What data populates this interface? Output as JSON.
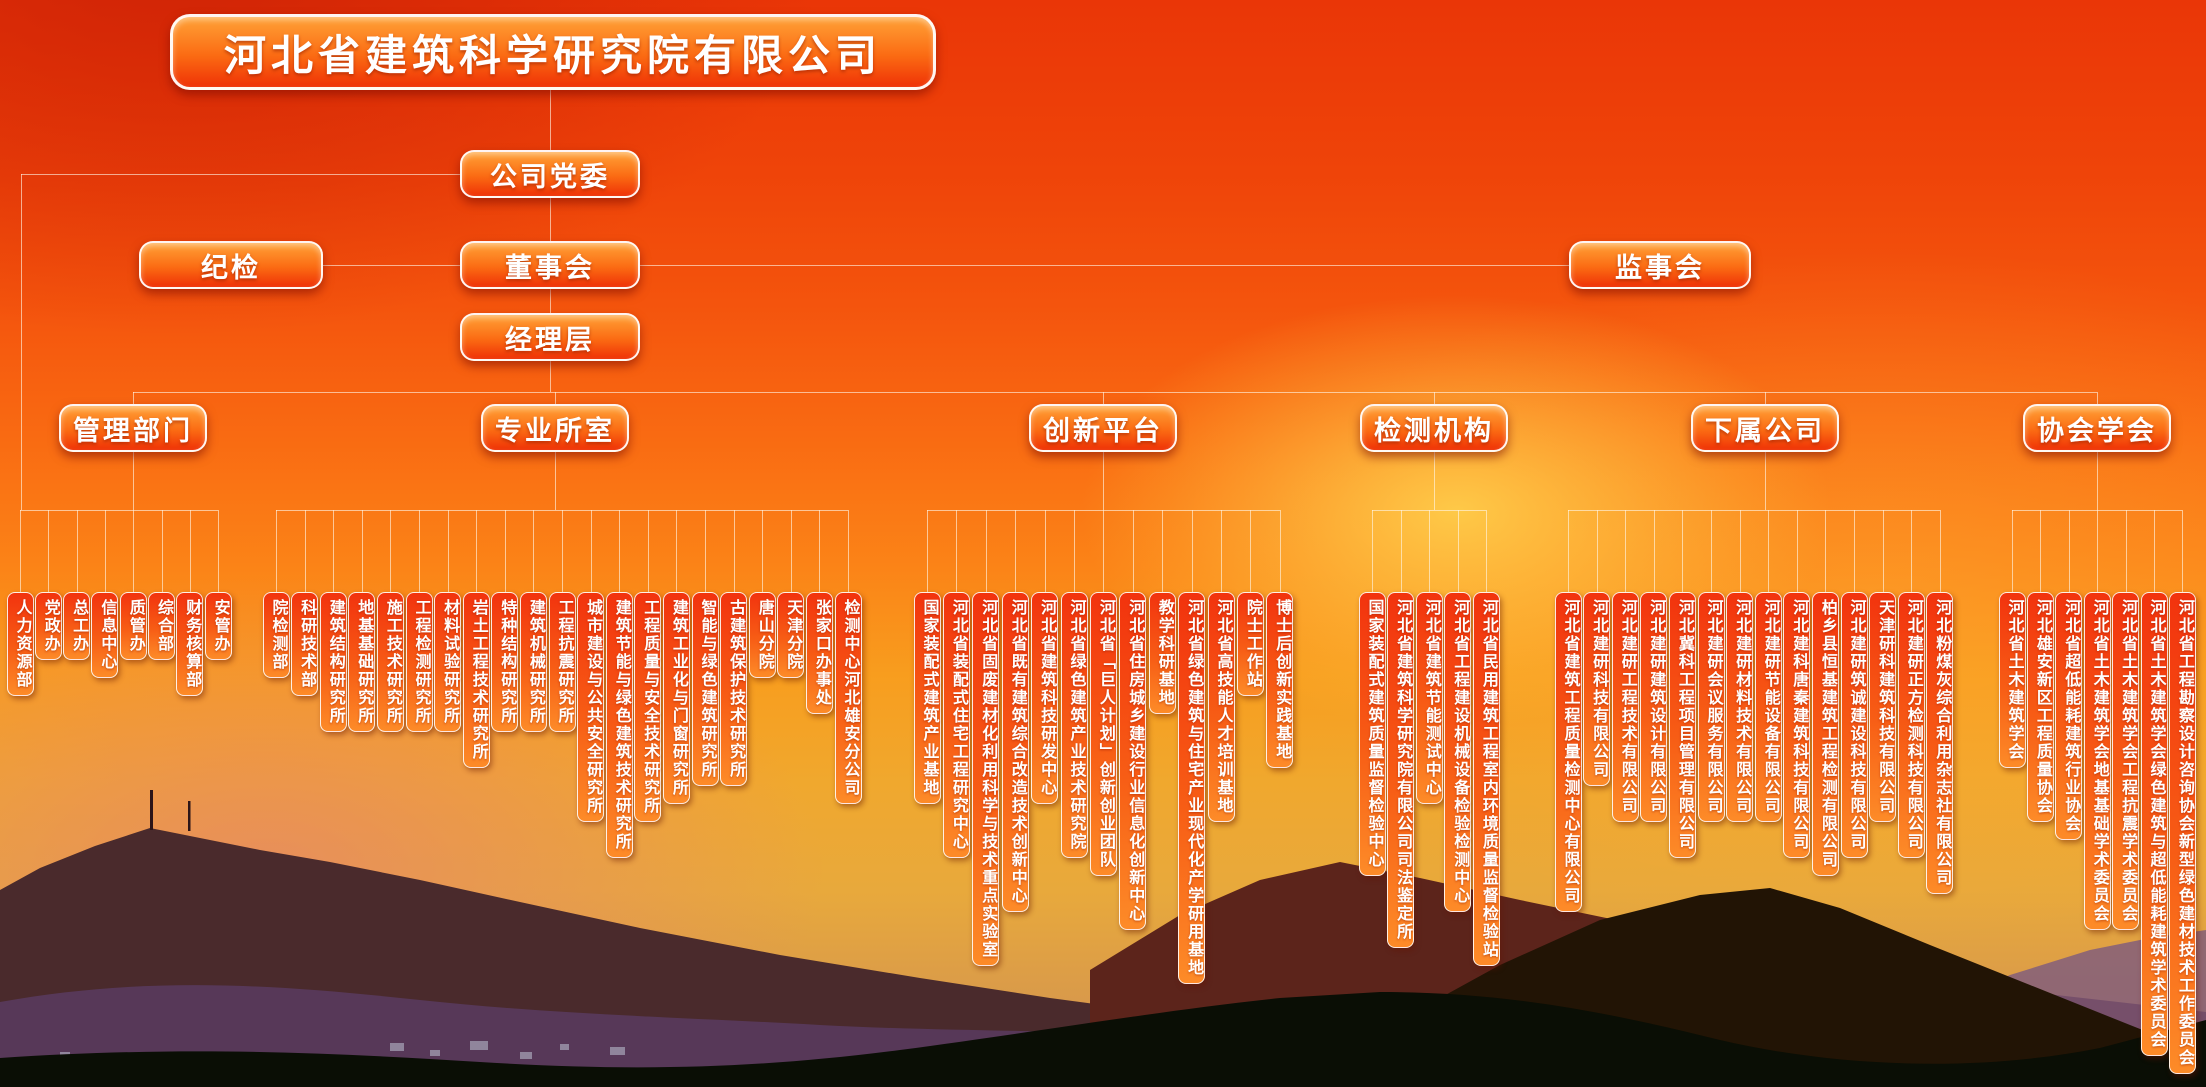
{
  "title": "河北省建筑科学研究院有限公司",
  "nodes": {
    "party": "公司党委",
    "discipline": "纪检",
    "board": "董事会",
    "supervisors": "监事会",
    "management": "经理层"
  },
  "groups": [
    {
      "label": "管理部门",
      "children": [
        "人力资源部",
        "党政办",
        "总工办",
        "信息中心",
        "质管办",
        "综合部",
        "财务核算部",
        "安管办"
      ]
    },
    {
      "label": "专业所室",
      "children": [
        "院检测部",
        "科研技术部",
        "建筑结构研究所",
        "地基基础研究所",
        "施工技术研究所",
        "工程检测研究所",
        "材料试验研究所",
        "岩土工程技术研究所",
        "特种结构研究所",
        "建筑机械研究所",
        "工程抗震研究所",
        "城市建设与公共安全研究所",
        "建筑节能与绿色建筑技术研究所",
        "工程质量与安全技术研究所",
        "建筑工业化与门窗研究所",
        "智能与绿色建筑研究所",
        "古建筑保护技术研究所",
        "唐山分院",
        "天津分院",
        "张家口办事处",
        "检测中心河北雄安分公司"
      ]
    },
    {
      "label": "创新平台",
      "children": [
        "国家装配式建筑产业基地",
        "河北省装配式住宅工程研究中心",
        "河北省固废建材化利用科学与技术重点实验室",
        "河北省既有建筑综合改造技术创新中心",
        "河北省建筑科技研发中心",
        "河北省绿色建筑产业技术研究院",
        "河北省「巨人计划」创新创业团队",
        "河北省住房城乡建设行业信息化创新中心",
        "教学科研基地",
        "河北省绿色建筑与住宅产业现代化产学研用基地",
        "河北省高技能人才培训基地",
        "院士工作站",
        "博士后创新实践基地"
      ]
    },
    {
      "label": "检测机构",
      "children": [
        "国家装配式建筑质量监督检验中心",
        "河北省建筑科学研究院有限公司司法鉴定所",
        "河北省建筑节能测试中心",
        "河北省工程建设机械设备检验检测中心",
        "河北省民用建筑工程室内环境质量监督检验站"
      ]
    },
    {
      "label": "下属公司",
      "children": [
        "河北省建筑工程质量检测中心有限公司",
        "河北建研科技有限公司",
        "河北建研工程技术有限公司",
        "河北建研建筑设计有限公司",
        "河北冀科工程项目管理有限公司",
        "河北建研会议服务有限公司",
        "河北建研材料技术有限公司",
        "河北建研节能设备有限公司",
        "河北建科唐秦建筑科技有限公司",
        "柏乡县恒基建筑工程检测有限公司",
        "河北建研筑诚建设科技有限公司",
        "天津研科建筑科技有限公司",
        "河北建研正方检测科技有限公司",
        "河北粉煤灰综合利用杂志社有限公司"
      ]
    },
    {
      "label": "协会学会",
      "children": [
        "河北省土木建筑学会",
        "河北雄安新区工程质量协会",
        "河北省超低能耗建筑行业协会",
        "河北省土木建筑学会地基基础学术委员会",
        "河北省土木建筑学会工程抗震学术委员会",
        "河北省土木建筑学会绿色建筑与超低能耗建筑学术委员会",
        "河北省工程勘察设计咨询协会新型绿色建材技术工作委员会"
      ]
    }
  ],
  "colors": {
    "node_gradient_top": "#ffa237",
    "node_gradient_mid": "#fb6b13",
    "node_gradient_bottom": "#ef3206",
    "leaf_gradient_top": "#f2330e",
    "leaf_gradient_mid": "#f75d15",
    "leaf_gradient_bottom": "#fd8b28",
    "box_border": "#ffffff",
    "text": "#ffffff",
    "connector": "rgba(255,246,230,0.62)"
  }
}
